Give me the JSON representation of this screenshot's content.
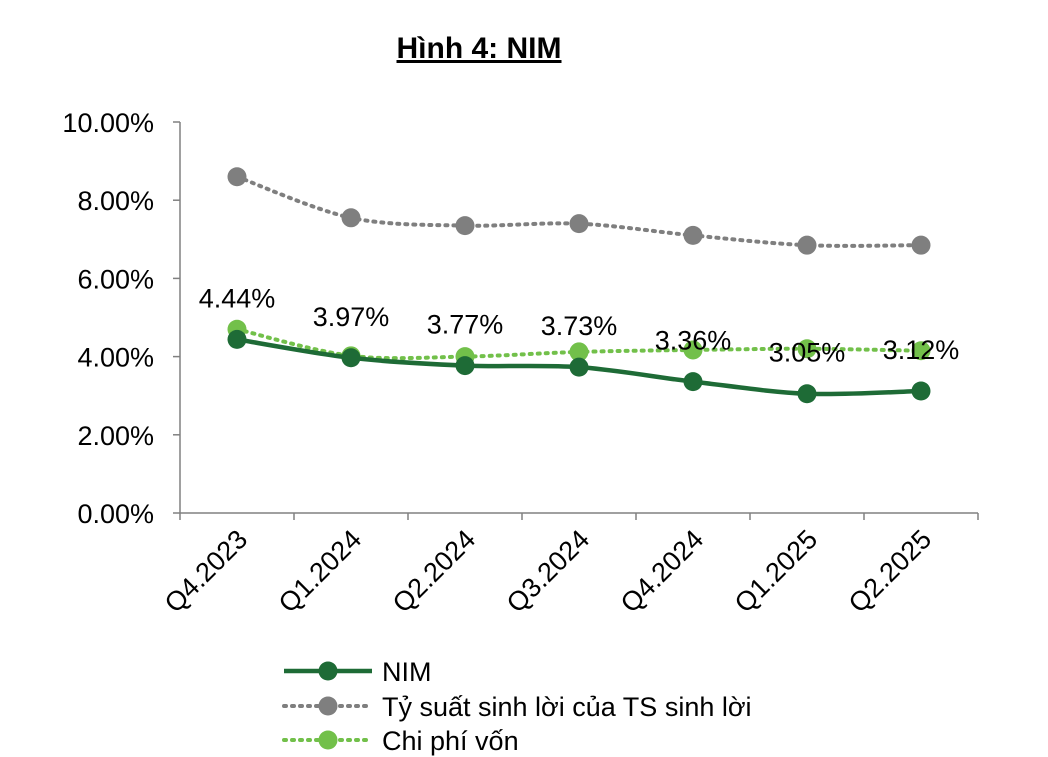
{
  "chart_data": {
    "type": "line",
    "title": "Hình 4: NIM",
    "xlabel": "",
    "ylabel": "",
    "categories": [
      "Q4.2023",
      "Q1.2024",
      "Q2.2024",
      "Q3.2024",
      "Q4.2024",
      "Q1.2025",
      "Q2.2025"
    ],
    "ylim": [
      0,
      10
    ],
    "yticks": [
      0,
      2,
      4,
      6,
      8,
      10
    ],
    "ytick_labels": [
      "0.00%",
      "2.00%",
      "4.00%",
      "6.00%",
      "8.00%",
      "10.00%"
    ],
    "grid": false,
    "legend_position": "bottom",
    "series": [
      {
        "name": "NIM",
        "values": [
          4.44,
          3.97,
          3.77,
          3.73,
          3.36,
          3.05,
          3.12
        ],
        "data_labels": [
          "4.44%",
          "3.97%",
          "3.77%",
          "3.73%",
          "3.36%",
          "3.05%",
          "3.12%"
        ],
        "color": "#1e6b36",
        "style": "solid"
      },
      {
        "name": "Tỷ suất sinh lời của TS sinh lời",
        "values": [
          8.6,
          7.55,
          7.35,
          7.4,
          7.1,
          6.85,
          6.85
        ],
        "color": "#7f7f7f",
        "style": "dotted"
      },
      {
        "name": "Chi phí vốn",
        "values": [
          4.7,
          4.02,
          4.0,
          4.12,
          4.17,
          4.2,
          4.15
        ],
        "color": "#72c04a",
        "style": "dotted"
      }
    ]
  }
}
